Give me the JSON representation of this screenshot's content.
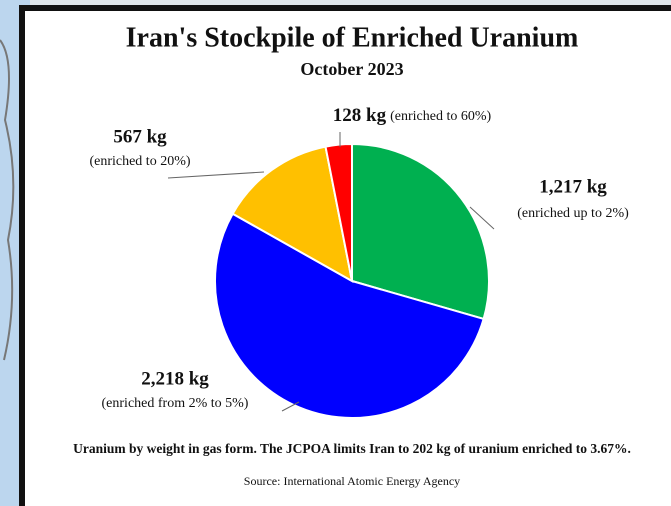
{
  "chart_data": {
    "type": "pie",
    "title": "Iran's Stockpile of Enriched Uranium",
    "subtitle": "October 2023",
    "categories": [
      "(enriched up to 2%)",
      "(enriched from 2% to  5%)",
      "(enriched to 20%)",
      "(enriched to 60%)"
    ],
    "values": [
      1217,
      2218,
      567,
      128
    ],
    "value_labels": [
      "1,217 kg",
      "2,218 kg",
      "567 kg",
      "128 kg"
    ],
    "colors": [
      "#00b050",
      "#0000ff",
      "#ffc000",
      "#ff0000"
    ],
    "note": "Uranium by weight in gas form. The JCPOA limits Iran to 202 kg of uranium enriched to 3.67%.",
    "source": "Source: International Atomic Energy Agency"
  }
}
